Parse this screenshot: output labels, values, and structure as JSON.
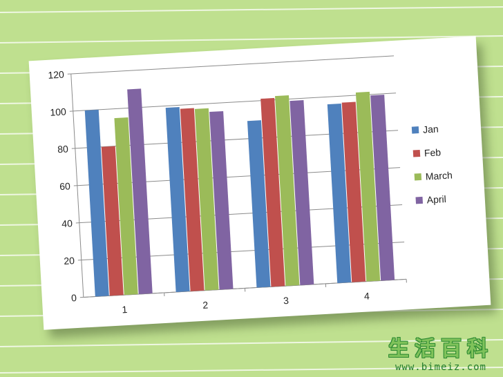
{
  "watermark": {
    "title": "生活百科",
    "url": "www.bimeiz.com"
  },
  "chart_data": {
    "type": "bar",
    "categories": [
      "1",
      "2",
      "3",
      "4"
    ],
    "series": [
      {
        "name": "Jan",
        "color": "#4f81bd",
        "values": [
          100,
          99,
          89.5,
          96
        ]
      },
      {
        "name": "Feb",
        "color": "#c0504d",
        "values": [
          80,
          98,
          101,
          96.5
        ]
      },
      {
        "name": "March",
        "color": "#9bbb59",
        "values": [
          95,
          97.5,
          102,
          101.5
        ]
      },
      {
        "name": "April",
        "color": "#8064a2",
        "values": [
          110,
          95.5,
          99,
          99.5
        ]
      }
    ],
    "ylim": [
      0,
      120
    ],
    "yticks": [
      "0",
      "20",
      "40",
      "60",
      "80",
      "100",
      "120"
    ],
    "grid": true,
    "legend_position": "right"
  }
}
